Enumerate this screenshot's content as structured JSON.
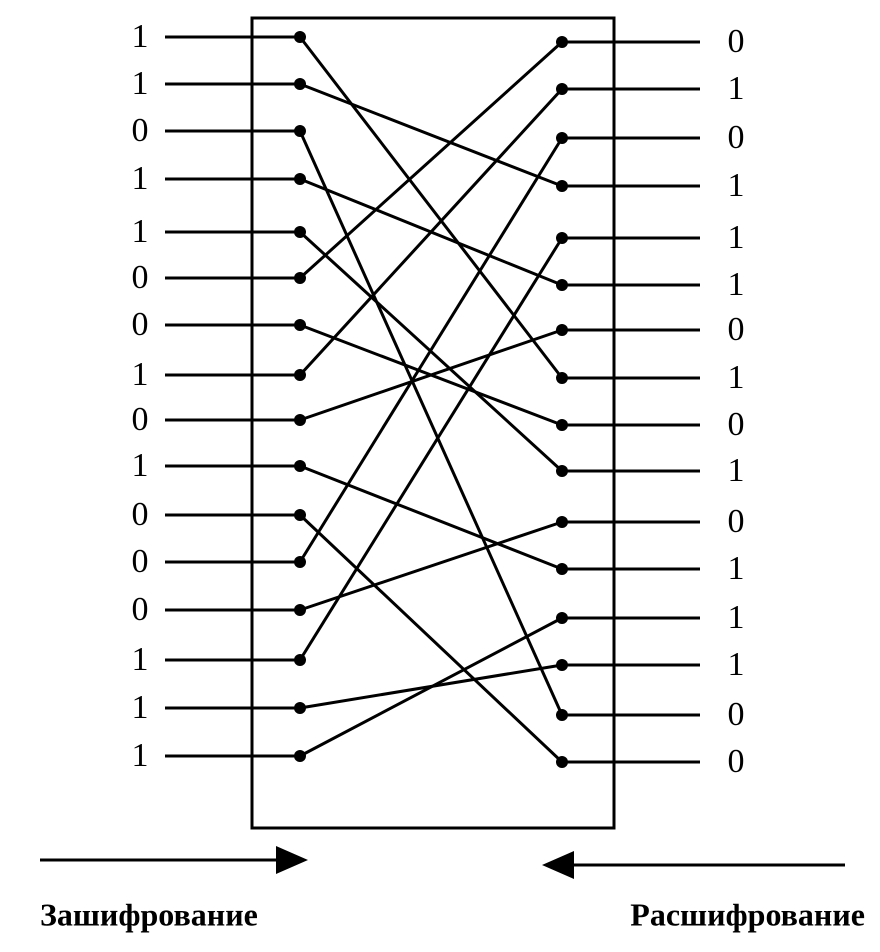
{
  "inputs": [
    "1",
    "1",
    "0",
    "1",
    "1",
    "0",
    "0",
    "1",
    "0",
    "1",
    "0",
    "0",
    "0",
    "1",
    "1",
    "1"
  ],
  "outputs": [
    "0",
    "1",
    "0",
    "1",
    "1",
    "1",
    "0",
    "1",
    "0",
    "1",
    "0",
    "1",
    "1",
    "1",
    "0",
    "0"
  ],
  "labels": {
    "encrypt": "Зашифрование",
    "decrypt": "Расшифрование"
  }
}
